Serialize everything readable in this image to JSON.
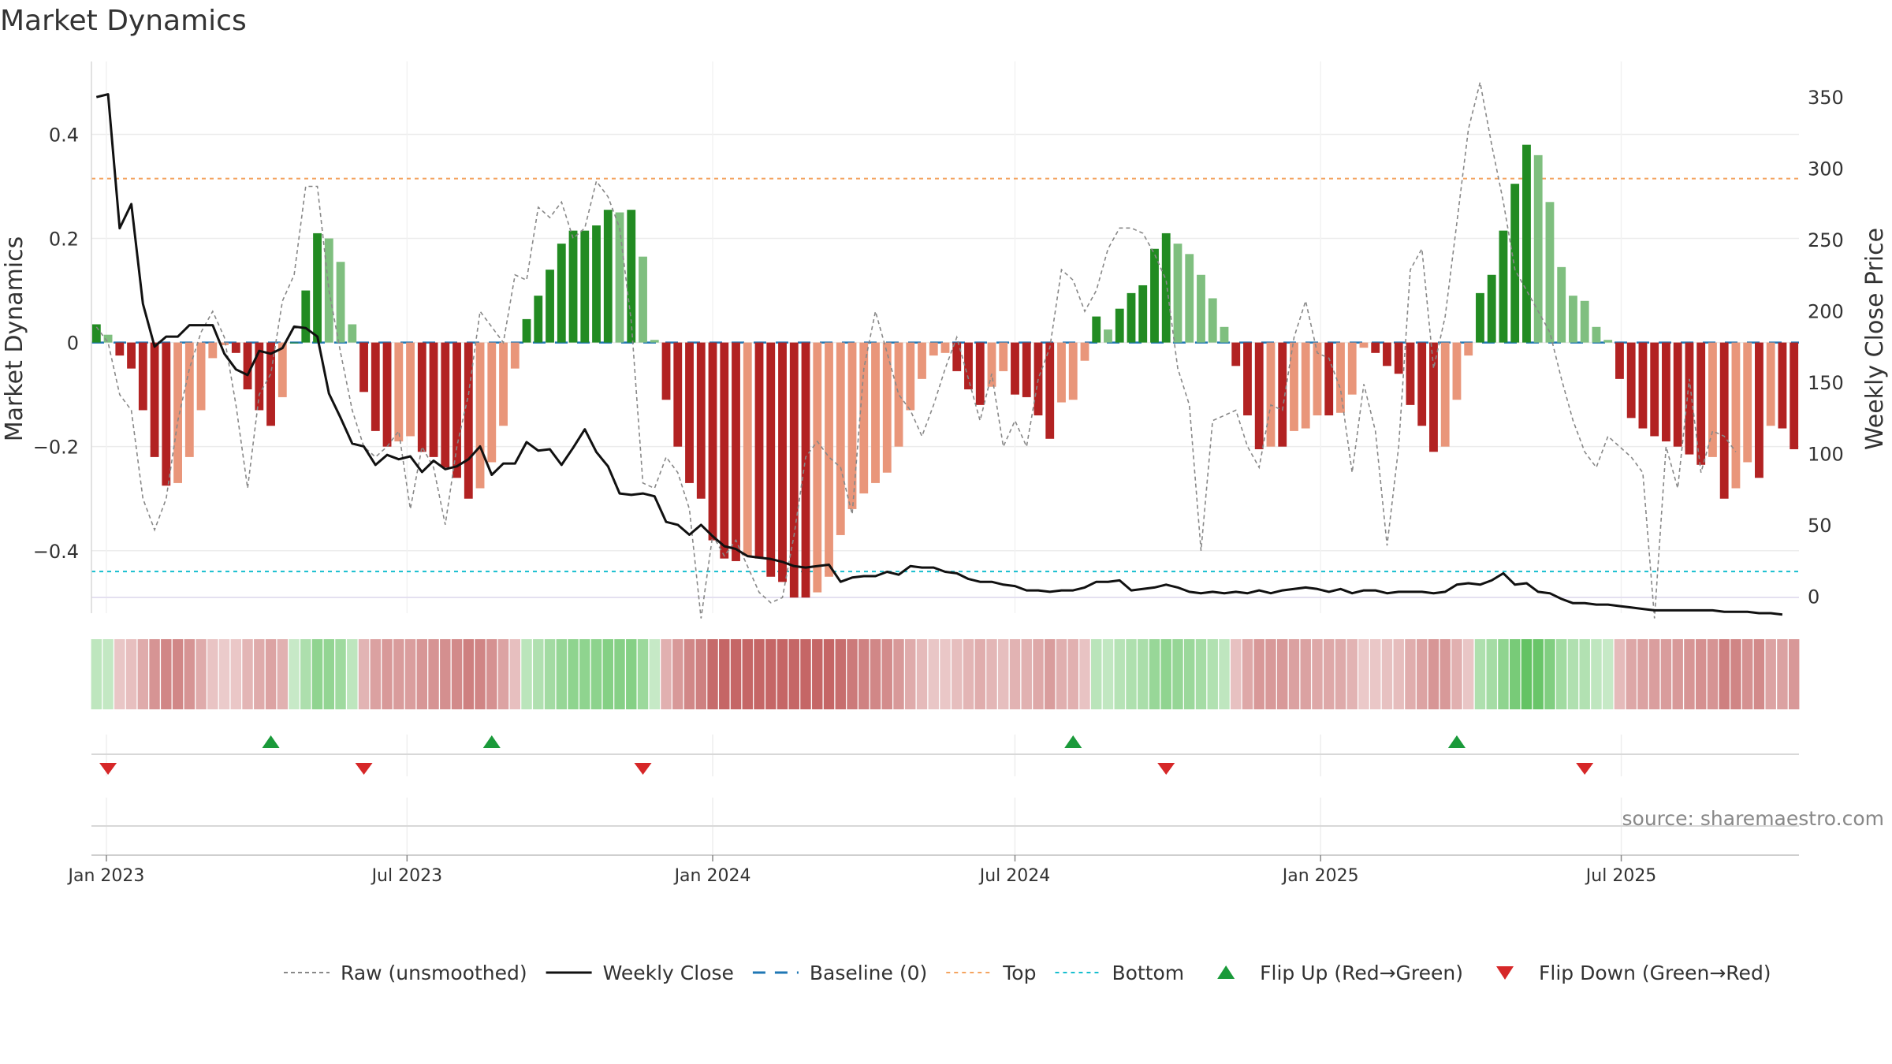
{
  "title": "Market Dynamics",
  "source": "source: sharemaestro.com",
  "colors": {
    "green_strong": "#228b22",
    "green_light": "#7fbf7f",
    "red_strong": "#b22222",
    "red_light": "#e9967a",
    "weekly_close": "#111111",
    "raw": "#888888",
    "baseline": "#1f77b4",
    "top": "#f4a460",
    "bottom": "#17becf",
    "flip_up": "#1a9a3a",
    "flip_down": "#d62728"
  },
  "chart_data": {
    "type": "bar",
    "title": "Market Dynamics",
    "ylabel": "Market Dynamics",
    "y2label": "Weekly Close Price",
    "ylim": [
      -0.52,
      0.54
    ],
    "y2lim": [
      -12,
      375
    ],
    "yticks": [
      "0.4",
      "0.2",
      "0",
      "−0.2",
      "−0.4"
    ],
    "yticks_values": [
      0.4,
      0.2,
      0,
      -0.2,
      -0.4
    ],
    "y2ticks": [
      "350",
      "300",
      "250",
      "200",
      "150",
      "100",
      "50",
      "0"
    ],
    "y2ticks_values": [
      350,
      300,
      250,
      200,
      150,
      100,
      50,
      0
    ],
    "x_start": "2022-12-26",
    "x_step_days": 7,
    "xticks": [
      "Jan 2023",
      "Jul 2023",
      "Jan 2024",
      "Jul 2024",
      "Jan 2025",
      "Jul 2025"
    ],
    "xticks_dates": [
      "2023-01-01",
      "2023-07-01",
      "2024-01-01",
      "2024-07-01",
      "2025-01-01",
      "2025-07-01"
    ],
    "top_level": 0.315,
    "bottom_level": -0.44,
    "baseline_level": 0,
    "grid": true,
    "legend_position": "bottom",
    "series": [
      {
        "name": "Market Dynamics",
        "values": [
          0.035,
          0.015,
          -0.025,
          -0.05,
          -0.13,
          -0.22,
          -0.275,
          -0.27,
          -0.22,
          -0.13,
          -0.03,
          -0.005,
          -0.02,
          -0.09,
          -0.13,
          -0.16,
          -0.105,
          0,
          0.1,
          0.21,
          0.2,
          0.155,
          0.035,
          -0.095,
          -0.17,
          -0.2,
          -0.19,
          -0.18,
          -0.21,
          -0.22,
          -0.24,
          -0.26,
          -0.3,
          -0.28,
          -0.23,
          -0.16,
          -0.05,
          0.045,
          0.09,
          0.14,
          0.19,
          0.215,
          0.215,
          0.225,
          0.255,
          0.25,
          0.255,
          0.165,
          0.005,
          -0.11,
          -0.2,
          -0.27,
          -0.3,
          -0.38,
          -0.415,
          -0.42,
          -0.41,
          -0.415,
          -0.45,
          -0.46,
          -0.49,
          -0.49,
          -0.48,
          -0.45,
          -0.37,
          -0.32,
          -0.29,
          -0.27,
          -0.25,
          -0.2,
          -0.13,
          -0.07,
          -0.025,
          -0.02,
          -0.055,
          -0.09,
          -0.12,
          -0.085,
          -0.055,
          -0.1,
          -0.105,
          -0.14,
          -0.185,
          -0.115,
          -0.11,
          -0.035,
          0.05,
          0.025,
          0.065,
          0.095,
          0.11,
          0.18,
          0.21,
          0.19,
          0.17,
          0.13,
          0.085,
          0.03,
          -0.045,
          -0.14,
          -0.205,
          -0.2,
          -0.2,
          -0.17,
          -0.165,
          -0.14,
          -0.14,
          -0.135,
          -0.1,
          -0.01,
          -0.02,
          -0.045,
          -0.06,
          -0.12,
          -0.16,
          -0.21,
          -0.2,
          -0.11,
          -0.025,
          0.095,
          0.13,
          0.215,
          0.305,
          0.38,
          0.36,
          0.27,
          0.145,
          0.09,
          0.08,
          0.03,
          0.005,
          -0.07,
          -0.145,
          -0.165,
          -0.18,
          -0.19,
          -0.2,
          -0.215,
          -0.235,
          -0.22,
          -0.3,
          -0.28,
          -0.23,
          -0.26,
          -0.16,
          -0.165,
          -0.205
        ]
      },
      {
        "name": "Raw (unsmoothed)",
        "values": [
          0.03,
          0,
          -0.1,
          -0.13,
          -0.3,
          -0.36,
          -0.3,
          -0.15,
          -0.05,
          0.02,
          0.06,
          0.01,
          -0.12,
          -0.28,
          -0.1,
          -0.06,
          0.08,
          0.13,
          0.3,
          0.3,
          0.1,
          -0.02,
          -0.13,
          -0.2,
          -0.22,
          -0.2,
          -0.17,
          -0.32,
          -0.2,
          -0.24,
          -0.35,
          -0.2,
          -0.1,
          0.06,
          0.03,
          0,
          0.13,
          0.12,
          0.26,
          0.24,
          0.27,
          0.2,
          0.22,
          0.31,
          0.28,
          0.22,
          0.04,
          -0.27,
          -0.28,
          -0.22,
          -0.25,
          -0.32,
          -0.53,
          -0.37,
          -0.41,
          -0.38,
          -0.43,
          -0.48,
          -0.5,
          -0.49,
          -0.37,
          -0.22,
          -0.19,
          -0.22,
          -0.24,
          -0.33,
          -0.05,
          0.06,
          -0.02,
          -0.1,
          -0.13,
          -0.18,
          -0.12,
          -0.05,
          0.01,
          -0.07,
          -0.15,
          -0.06,
          -0.2,
          -0.15,
          -0.2,
          -0.07,
          -0.01,
          0.14,
          0.12,
          0.06,
          0.1,
          0.18,
          0.22,
          0.22,
          0.21,
          0.17,
          0.12,
          -0.05,
          -0.12,
          -0.4,
          -0.15,
          -0.14,
          -0.13,
          -0.2,
          -0.24,
          -0.12,
          -0.13,
          0.01,
          0.08,
          -0.02,
          -0.03,
          -0.09,
          -0.25,
          -0.08,
          -0.17,
          -0.39,
          -0.2,
          0.14,
          0.18,
          -0.05,
          0.05,
          0.23,
          0.41,
          0.5,
          0.38,
          0.27,
          0.14,
          0.1,
          0.06,
          0.02,
          -0.07,
          -0.15,
          -0.21,
          -0.24,
          -0.18,
          -0.2,
          -0.22,
          -0.25,
          -0.53,
          -0.2,
          -0.28,
          -0.07,
          -0.25,
          -0.17,
          -0.18,
          -0.21
        ]
      },
      {
        "name": "Weekly Close",
        "values": [
          350,
          352,
          258,
          275,
          205,
          175,
          182,
          182,
          190,
          190,
          190,
          170,
          159,
          155,
          172,
          170,
          174,
          189,
          188,
          182,
          142,
          125,
          107,
          105,
          92,
          99,
          96,
          98,
          87,
          95,
          89,
          91,
          96,
          105,
          85,
          93,
          93,
          108,
          102,
          103,
          92,
          104,
          117,
          101,
          91,
          72,
          71,
          72,
          70,
          52,
          50,
          43,
          50,
          42,
          35,
          33,
          28,
          27,
          26,
          24,
          21,
          20,
          21,
          22,
          10,
          13,
          14,
          14,
          17,
          15,
          21,
          20,
          20,
          17,
          16,
          12,
          10,
          10,
          8,
          7,
          4,
          4,
          3,
          4,
          4,
          6,
          10,
          10,
          11,
          4,
          5,
          6,
          8,
          6,
          3,
          2,
          3,
          2,
          3,
          2,
          4,
          2,
          4,
          5,
          6,
          5,
          3,
          5,
          2,
          4,
          4,
          2,
          3,
          3,
          3,
          2,
          3,
          8,
          9,
          8,
          11,
          16,
          8,
          9,
          3,
          2,
          -2,
          -5,
          -5,
          -6,
          -6,
          -7,
          -8,
          -9,
          -10,
          -10,
          -10,
          -10,
          -10,
          -10,
          -11,
          -11,
          -11,
          -12,
          -12,
          -13
        ]
      }
    ],
    "flip_up": [
      "2023-04-10",
      "2023-08-21",
      "2024-08-05",
      "2025-03-24"
    ],
    "flip_down": [
      "2023-01-02",
      "2023-06-05",
      "2023-11-20",
      "2024-09-30",
      "2025-06-09"
    ]
  },
  "legend": {
    "raw": "Raw (unsmoothed)",
    "weekly_close": "Weekly Close",
    "baseline": "Baseline (0)",
    "top": "Top",
    "bottom": "Bottom",
    "flip_up": "Flip Up (Red→Green)",
    "flip_down": "Flip Down (Green→Red)"
  }
}
